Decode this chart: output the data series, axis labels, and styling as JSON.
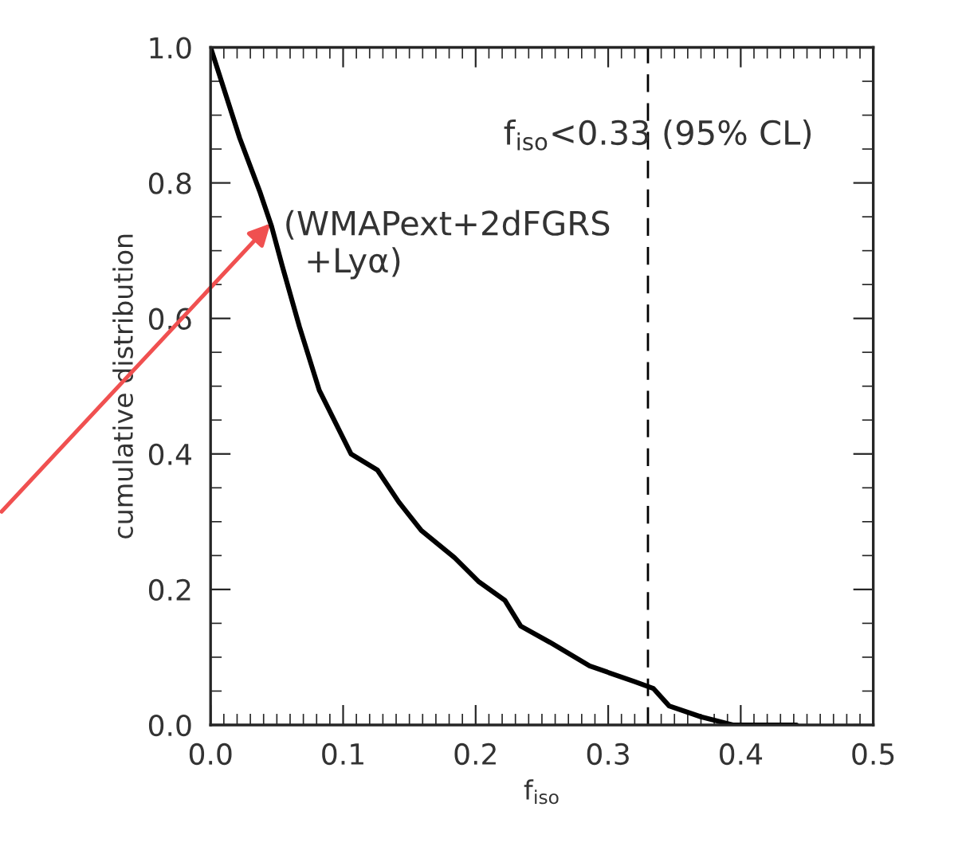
{
  "chart_data": {
    "type": "line",
    "xlabel": "f$_{iso}$",
    "ylabel": "cumulative distribution",
    "series": [
      {
        "color": "#000000",
        "x": [
          0,
          0.022,
          0.037,
          0.046,
          0.054,
          0.067,
          0.082,
          0.094,
          0.106,
          0.126,
          0.142,
          0.159,
          0.184,
          0.202,
          0.222,
          0.234,
          0.256,
          0.286,
          0.32,
          0.334,
          0.346,
          0.37,
          0.394,
          0.442
        ],
        "values": [
          1.0,
          0.866,
          0.788,
          0.736,
          0.678,
          0.588,
          0.494,
          0.447,
          0.4,
          0.376,
          0.329,
          0.287,
          0.247,
          0.212,
          0.184,
          0.146,
          0.122,
          0.087,
          0.064,
          0.054,
          0.028,
          0.012,
          0,
          0
        ]
      }
    ],
    "xlim": [
      0,
      0.5
    ],
    "ylim": [
      0,
      1.0
    ],
    "xticks": [
      {
        "value": 0,
        "label": "0.0"
      },
      0.1,
      0.2,
      0.3,
      0.4,
      0.5
    ],
    "yticks": [
      {
        "value": 0,
        "label": "0.0"
      },
      0.2,
      0.4,
      0.6,
      0.8,
      {
        "value": 1,
        "label": "1.0"
      }
    ],
    "ref_lines": [
      {
        "axis": "x",
        "value": 0.33,
        "color": "#000000",
        "line_style": "dashed"
      }
    ],
    "annotations": [
      {
        "text": "f$_{iso}$<0.33 (95% CL)",
        "x": 0.33,
        "y": 0.87
      },
      "(WMAPext+2dFGRS\n  +Lyα)"
    ],
    "grid": false,
    "legend": false,
    "marker": "none",
    "line_style": "solid"
  }
}
